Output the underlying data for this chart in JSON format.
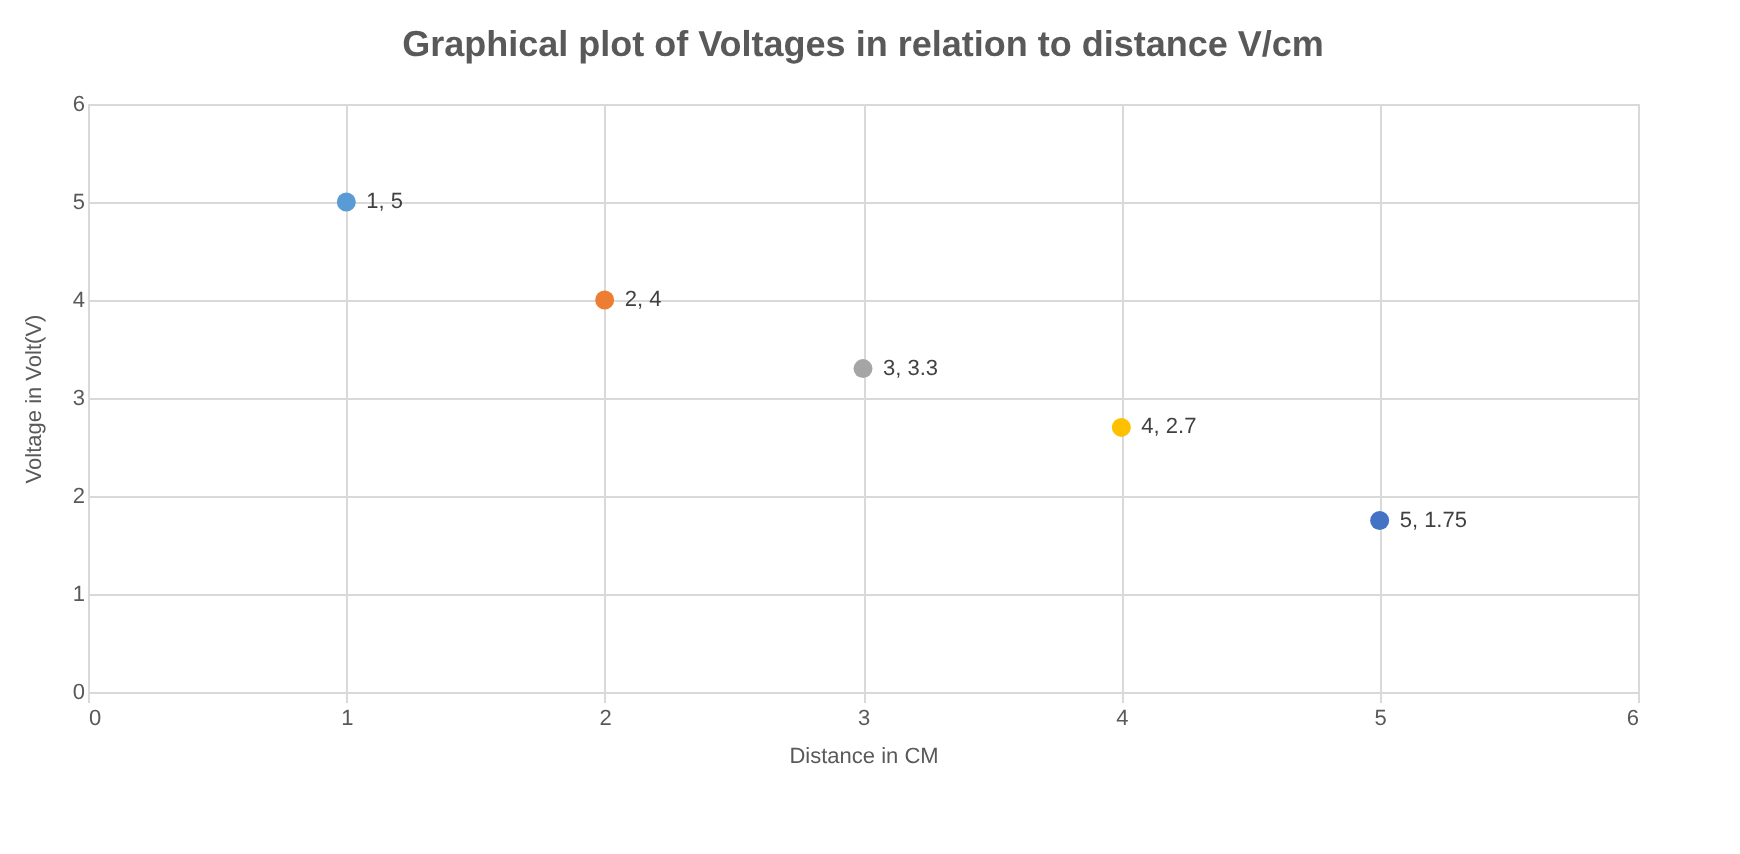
{
  "chart_data": {
    "type": "scatter",
    "title": "Graphical plot of Voltages in relation to distance V/cm",
    "xlabel": "Distance in CM",
    "ylabel": "Voltage in Volt(V)",
    "x": [
      1,
      2,
      3,
      4,
      5
    ],
    "values": [
      5,
      4,
      3.3,
      2.7,
      1.75
    ],
    "colors": [
      "#5b9bd5",
      "#ed7d31",
      "#a5a5a5",
      "#ffc000",
      "#4472c4"
    ],
    "value_labels": [
      "1, 5",
      "2, 4",
      "3, 3.3",
      "4, 2.7",
      "5, 1.75"
    ],
    "xlim": [
      0,
      6
    ],
    "xticks": [
      0,
      1,
      2,
      3,
      4,
      5,
      6
    ],
    "ylim": [
      0,
      6
    ],
    "yticks": [
      0,
      1,
      2,
      3,
      4,
      5,
      6
    ],
    "grid": true,
    "marker": "circle"
  }
}
